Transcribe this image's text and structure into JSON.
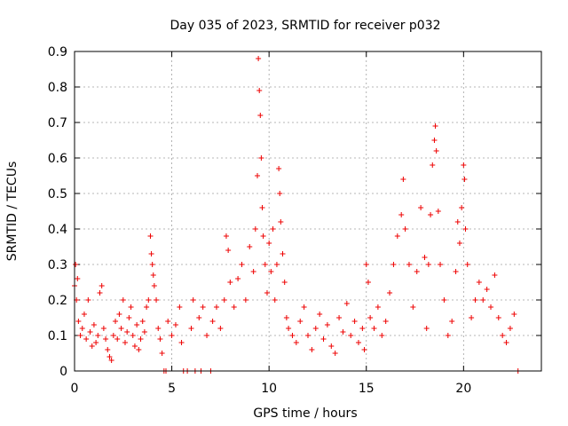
{
  "chart_data": {
    "type": "scatter",
    "title": "Day 035 of 2023, SRMTID for receiver p032",
    "xlabel": "GPS time / hours",
    "ylabel": "SRMTID / TECUs",
    "xlim": [
      0,
      24
    ],
    "ylim": [
      0,
      0.9
    ],
    "xticks": [
      0,
      5,
      10,
      15,
      20
    ],
    "yticks": [
      0,
      0.1,
      0.2,
      0.3,
      0.4,
      0.5,
      0.6,
      0.7,
      0.8,
      0.9
    ],
    "grid": true,
    "marker": "+",
    "color": "#ee0000",
    "series": [
      {
        "name": "p032",
        "points": [
          [
            0.0,
            0.24
          ],
          [
            0.05,
            0.3
          ],
          [
            0.1,
            0.2
          ],
          [
            0.15,
            0.26
          ],
          [
            0.2,
            0.14
          ],
          [
            0.3,
            0.1
          ],
          [
            0.4,
            0.12
          ],
          [
            0.5,
            0.16
          ],
          [
            0.6,
            0.09
          ],
          [
            0.7,
            0.2
          ],
          [
            0.8,
            0.11
          ],
          [
            0.9,
            0.07
          ],
          [
            1.0,
            0.13
          ],
          [
            1.1,
            0.08
          ],
          [
            1.2,
            0.1
          ],
          [
            1.3,
            0.22
          ],
          [
            1.4,
            0.24
          ],
          [
            1.5,
            0.12
          ],
          [
            1.6,
            0.09
          ],
          [
            1.7,
            0.06
          ],
          [
            1.8,
            0.04
          ],
          [
            1.9,
            0.03
          ],
          [
            2.0,
            0.1
          ],
          [
            2.1,
            0.14
          ],
          [
            2.2,
            0.09
          ],
          [
            2.3,
            0.16
          ],
          [
            2.4,
            0.12
          ],
          [
            2.5,
            0.2
          ],
          [
            2.6,
            0.08
          ],
          [
            2.7,
            0.11
          ],
          [
            2.8,
            0.15
          ],
          [
            2.9,
            0.18
          ],
          [
            3.0,
            0.1
          ],
          [
            3.1,
            0.07
          ],
          [
            3.2,
            0.13
          ],
          [
            3.3,
            0.06
          ],
          [
            3.4,
            0.09
          ],
          [
            3.5,
            0.14
          ],
          [
            3.6,
            0.11
          ],
          [
            3.7,
            0.18
          ],
          [
            3.8,
            0.2
          ],
          [
            3.9,
            0.38
          ],
          [
            3.95,
            0.33
          ],
          [
            4.0,
            0.3
          ],
          [
            4.05,
            0.27
          ],
          [
            4.1,
            0.24
          ],
          [
            4.2,
            0.2
          ],
          [
            4.3,
            0.12
          ],
          [
            4.4,
            0.09
          ],
          [
            4.5,
            0.05
          ],
          [
            4.6,
            0.0
          ],
          [
            4.7,
            0.0
          ],
          [
            4.8,
            0.14
          ],
          [
            5.0,
            0.1
          ],
          [
            5.2,
            0.13
          ],
          [
            5.4,
            0.18
          ],
          [
            5.5,
            0.08
          ],
          [
            5.6,
            0.0
          ],
          [
            5.8,
            0.0
          ],
          [
            6.0,
            0.12
          ],
          [
            6.1,
            0.2
          ],
          [
            6.2,
            0.0
          ],
          [
            6.4,
            0.15
          ],
          [
            6.5,
            0.0
          ],
          [
            6.6,
            0.18
          ],
          [
            6.8,
            0.1
          ],
          [
            7.0,
            0.0
          ],
          [
            7.1,
            0.14
          ],
          [
            7.3,
            0.18
          ],
          [
            7.5,
            0.12
          ],
          [
            7.7,
            0.2
          ],
          [
            7.8,
            0.38
          ],
          [
            7.9,
            0.34
          ],
          [
            8.0,
            0.25
          ],
          [
            8.2,
            0.18
          ],
          [
            8.4,
            0.26
          ],
          [
            8.6,
            0.3
          ],
          [
            8.8,
            0.2
          ],
          [
            9.0,
            0.35
          ],
          [
            9.2,
            0.28
          ],
          [
            9.3,
            0.4
          ],
          [
            9.4,
            0.55
          ],
          [
            9.45,
            0.88
          ],
          [
            9.5,
            0.79
          ],
          [
            9.55,
            0.72
          ],
          [
            9.6,
            0.6
          ],
          [
            9.65,
            0.46
          ],
          [
            9.7,
            0.38
          ],
          [
            9.8,
            0.3
          ],
          [
            9.9,
            0.22
          ],
          [
            10.0,
            0.36
          ],
          [
            10.1,
            0.28
          ],
          [
            10.2,
            0.4
          ],
          [
            10.3,
            0.2
          ],
          [
            10.4,
            0.3
          ],
          [
            10.5,
            0.57
          ],
          [
            10.55,
            0.5
          ],
          [
            10.6,
            0.42
          ],
          [
            10.7,
            0.33
          ],
          [
            10.8,
            0.25
          ],
          [
            10.9,
            0.15
          ],
          [
            11.0,
            0.12
          ],
          [
            11.2,
            0.1
          ],
          [
            11.4,
            0.08
          ],
          [
            11.6,
            0.14
          ],
          [
            11.8,
            0.18
          ],
          [
            12.0,
            0.1
          ],
          [
            12.2,
            0.06
          ],
          [
            12.4,
            0.12
          ],
          [
            12.6,
            0.16
          ],
          [
            12.8,
            0.09
          ],
          [
            13.0,
            0.13
          ],
          [
            13.2,
            0.07
          ],
          [
            13.4,
            0.05
          ],
          [
            13.6,
            0.15
          ],
          [
            13.8,
            0.11
          ],
          [
            14.0,
            0.19
          ],
          [
            14.2,
            0.1
          ],
          [
            14.4,
            0.14
          ],
          [
            14.6,
            0.08
          ],
          [
            14.8,
            0.12
          ],
          [
            14.9,
            0.06
          ],
          [
            15.0,
            0.3
          ],
          [
            15.1,
            0.25
          ],
          [
            15.2,
            0.15
          ],
          [
            15.4,
            0.12
          ],
          [
            15.6,
            0.18
          ],
          [
            15.8,
            0.1
          ],
          [
            16.0,
            0.14
          ],
          [
            16.2,
            0.22
          ],
          [
            16.4,
            0.3
          ],
          [
            16.6,
            0.38
          ],
          [
            16.8,
            0.44
          ],
          [
            16.9,
            0.54
          ],
          [
            17.0,
            0.4
          ],
          [
            17.2,
            0.3
          ],
          [
            17.4,
            0.18
          ],
          [
            17.6,
            0.28
          ],
          [
            17.8,
            0.46
          ],
          [
            18.0,
            0.32
          ],
          [
            18.1,
            0.12
          ],
          [
            18.2,
            0.3
          ],
          [
            18.3,
            0.44
          ],
          [
            18.4,
            0.58
          ],
          [
            18.5,
            0.65
          ],
          [
            18.55,
            0.69
          ],
          [
            18.6,
            0.62
          ],
          [
            18.7,
            0.45
          ],
          [
            18.8,
            0.3
          ],
          [
            19.0,
            0.2
          ],
          [
            19.2,
            0.1
          ],
          [
            19.4,
            0.14
          ],
          [
            19.6,
            0.28
          ],
          [
            19.7,
            0.42
          ],
          [
            19.8,
            0.36
          ],
          [
            19.9,
            0.46
          ],
          [
            20.0,
            0.58
          ],
          [
            20.05,
            0.54
          ],
          [
            20.1,
            0.4
          ],
          [
            20.2,
            0.3
          ],
          [
            20.4,
            0.15
          ],
          [
            20.6,
            0.2
          ],
          [
            20.8,
            0.25
          ],
          [
            21.0,
            0.2
          ],
          [
            21.2,
            0.23
          ],
          [
            21.4,
            0.18
          ],
          [
            21.6,
            0.27
          ],
          [
            21.8,
            0.15
          ],
          [
            22.0,
            0.1
          ],
          [
            22.2,
            0.08
          ],
          [
            22.4,
            0.12
          ],
          [
            22.6,
            0.16
          ],
          [
            22.8,
            0.0
          ]
        ]
      }
    ]
  }
}
